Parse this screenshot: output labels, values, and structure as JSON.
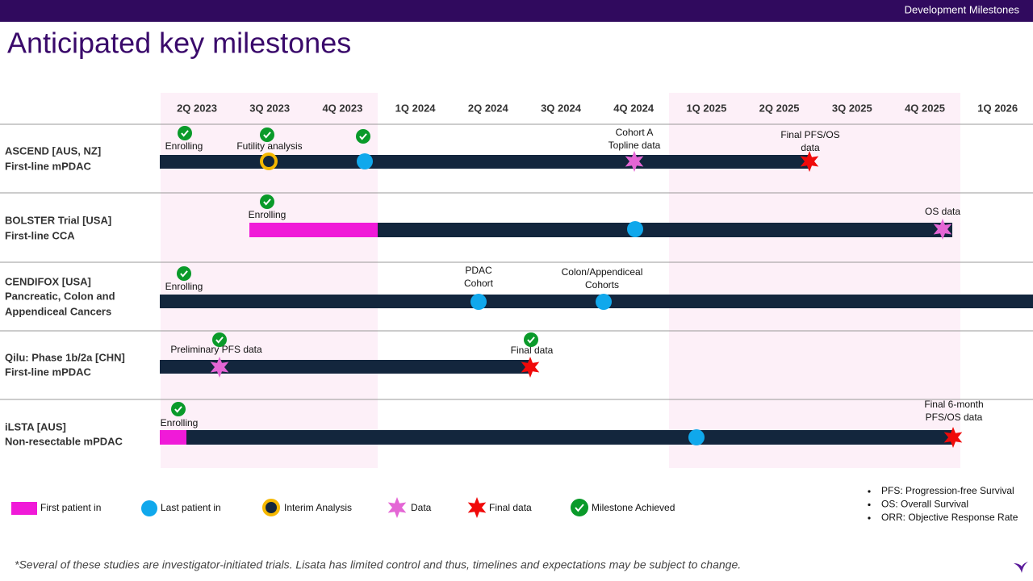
{
  "header": {
    "section": "Development Milestones",
    "title": "Anticipated key milestones"
  },
  "quarters": [
    "2Q 2023",
    "3Q 2023",
    "4Q 2023",
    "1Q 2024",
    "2Q 2024",
    "3Q 2024",
    "4Q 2024",
    "1Q 2025",
    "2Q 2025",
    "3Q 2025",
    "4Q 2025",
    "1Q 2026"
  ],
  "trials": [
    {
      "name": [
        "ASCEND [AUS, NZ]",
        "First-line mPDAC"
      ],
      "milestones": [
        [
          "Enrolling"
        ],
        [
          "Futility analysis"
        ],
        [
          "Cohort A",
          "Topline data"
        ],
        [
          "Final PFS/OS",
          "data"
        ]
      ]
    },
    {
      "name": [
        "BOLSTER Trial [USA]",
        "First-line CCA"
      ],
      "milestones": [
        [
          "Enrolling"
        ],
        [
          "OS data"
        ]
      ]
    },
    {
      "name": [
        "CENDIFOX [USA]",
        "Pancreatic, Colon and",
        "Appendiceal Cancers"
      ],
      "milestones": [
        [
          "Enrolling"
        ],
        [
          "PDAC",
          "Cohort"
        ],
        [
          "Colon/Appendiceal",
          "Cohorts"
        ]
      ]
    },
    {
      "name": [
        "Qilu: Phase 1b/2a [CHN]",
        "First-line mPDAC"
      ],
      "milestones": [
        [
          "Preliminary PFS data"
        ],
        [
          "Final data"
        ]
      ]
    },
    {
      "name": [
        "iLSTA [AUS]",
        "Non-resectable mPDAC"
      ],
      "milestones": [
        [
          "Enrolling"
        ],
        [
          "Final 6-month",
          "PFS/OS data"
        ]
      ]
    }
  ],
  "legend": [
    "First patient in",
    "Last patient in",
    "Interim Analysis",
    "Data",
    "Final data",
    "Milestone Achieved"
  ],
  "notes": [
    "PFS: Progression-free Survival",
    "OS: Overall Survival",
    "ORR: Objective Response Rate"
  ],
  "footnote": "*Several of these studies are investigator-initiated trials. Lisata has limited control and thus, timelines and expectations may be subject to change."
}
